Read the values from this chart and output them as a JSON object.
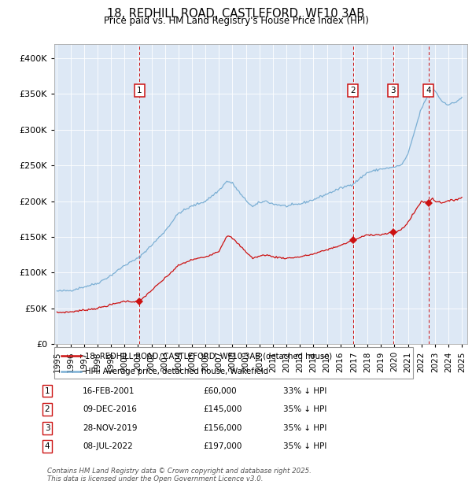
{
  "title": "18, REDHILL ROAD, CASTLEFORD, WF10 3AB",
  "subtitle": "Price paid vs. HM Land Registry's House Price Index (HPI)",
  "background_color": "#dde8f5",
  "plot_bg_color": "#dde8f5",
  "hpi_color": "#7bafd4",
  "sale_color": "#cc1111",
  "vline_color": "#cc1111",
  "ylim": [
    0,
    420000
  ],
  "yticks": [
    0,
    50000,
    100000,
    150000,
    200000,
    250000,
    300000,
    350000,
    400000
  ],
  "legend_sale_label": "18, REDHILL ROAD, CASTLEFORD, WF10 3AB (detached house)",
  "legend_hpi_label": "HPI: Average price, detached house, Wakefield",
  "footer_line1": "Contains HM Land Registry data © Crown copyright and database right 2025.",
  "footer_line2": "This data is licensed under the Open Government Licence v3.0.",
  "sales": [
    {
      "date_num": 2001.12,
      "price": 60000,
      "label": "1",
      "date_str": "16-FEB-2001",
      "pct": "33% ↓ HPI"
    },
    {
      "date_num": 2016.93,
      "price": 145000,
      "label": "2",
      "date_str": "09-DEC-2016",
      "pct": "35% ↓ HPI"
    },
    {
      "date_num": 2019.9,
      "price": 156000,
      "label": "3",
      "date_str": "28-NOV-2019",
      "pct": "35% ↓ HPI"
    },
    {
      "date_num": 2022.52,
      "price": 197000,
      "label": "4",
      "date_str": "08-JUL-2022",
      "pct": "35% ↓ HPI"
    }
  ],
  "xticks": [
    1995,
    1996,
    1997,
    1998,
    1999,
    2000,
    2001,
    2002,
    2003,
    2004,
    2005,
    2006,
    2007,
    2008,
    2009,
    2010,
    2011,
    2012,
    2013,
    2014,
    2015,
    2016,
    2017,
    2018,
    2019,
    2020,
    2021,
    2022,
    2023,
    2024,
    2025
  ],
  "xlim": [
    1994.8,
    2025.4
  ]
}
